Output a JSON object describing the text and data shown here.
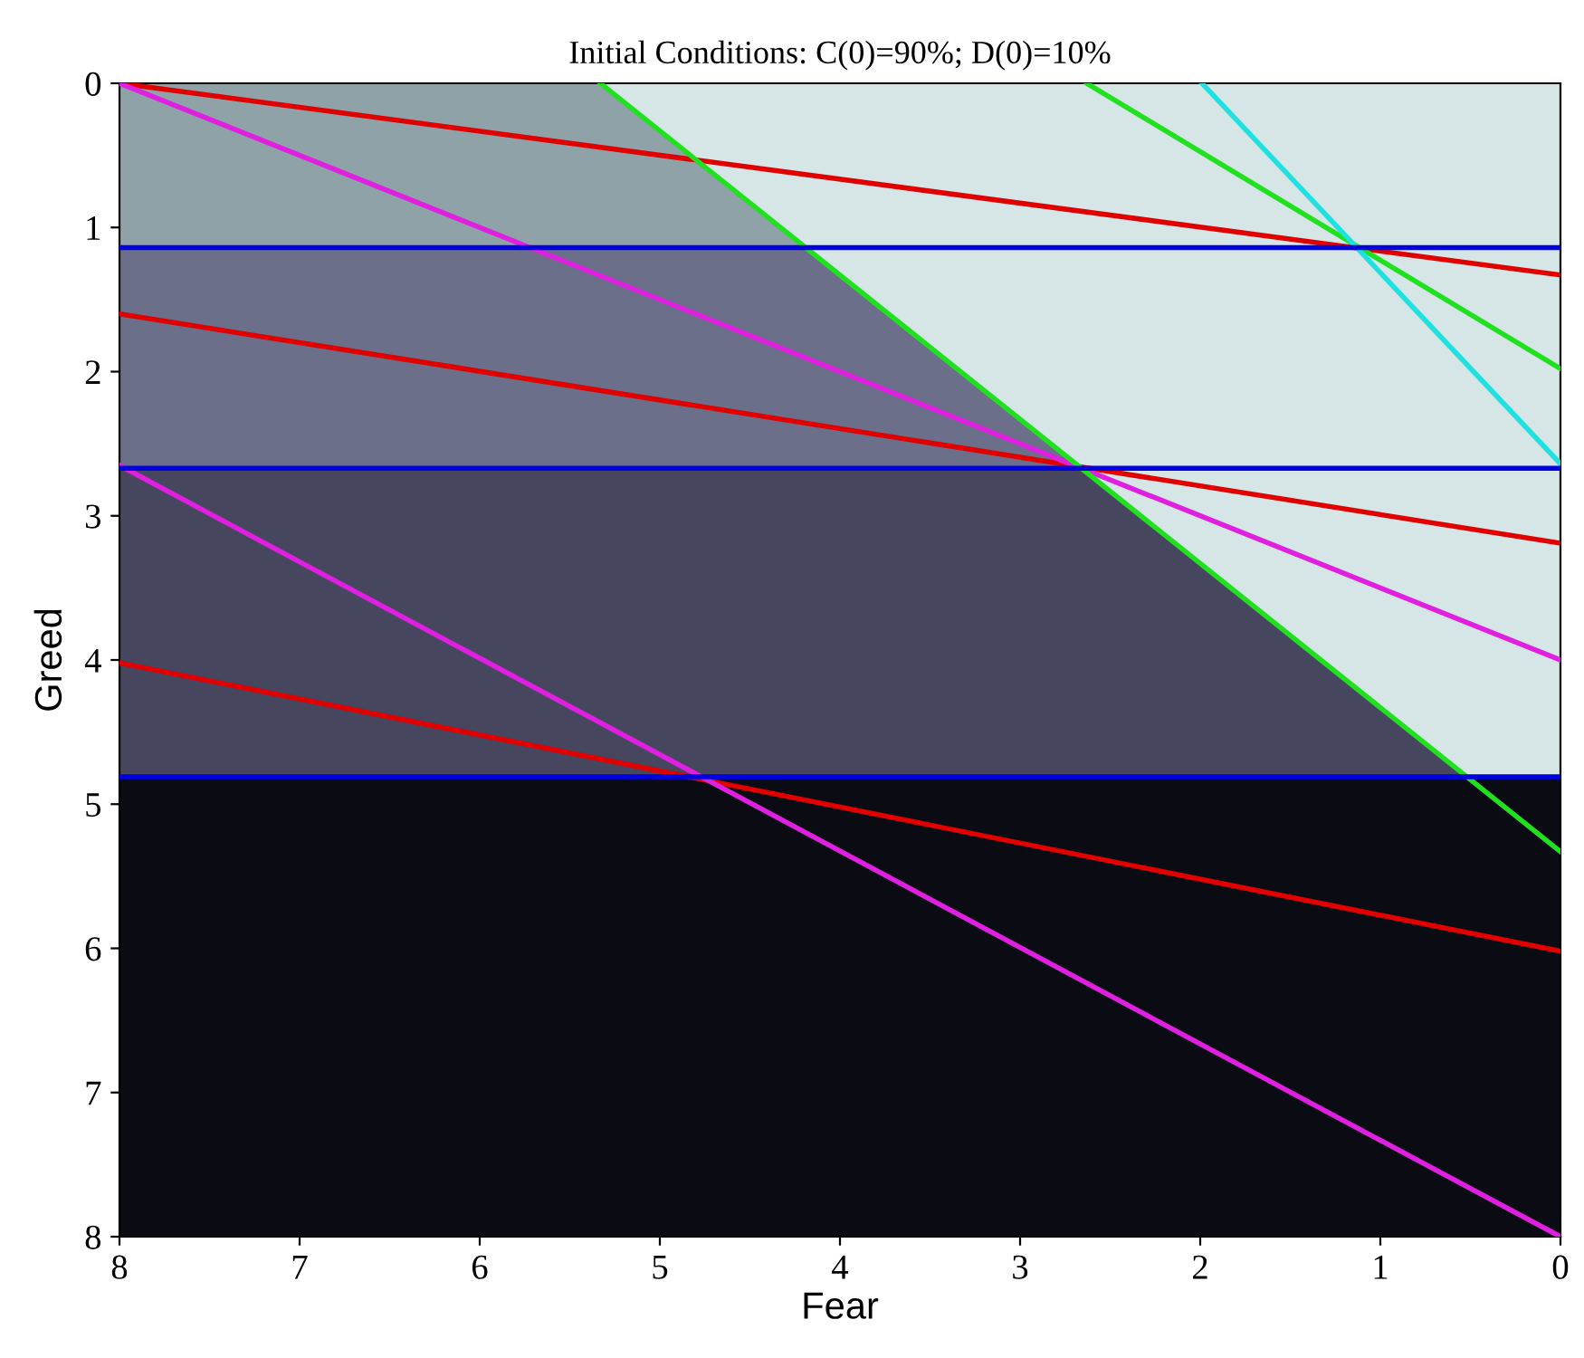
{
  "chart_data": {
    "type": "line",
    "title": "Initial Conditions: C(0)=90%; D(0)=10%",
    "xlabel": "Fear",
    "ylabel": "Greed",
    "xlim": [
      8,
      0
    ],
    "ylim": [
      8,
      0
    ],
    "xticks": [
      8,
      7,
      6,
      5,
      4,
      3,
      2,
      1,
      0
    ],
    "yticks": [
      0,
      1,
      2,
      3,
      4,
      5,
      6,
      7,
      8
    ],
    "grid": false,
    "legend": false,
    "marker": "none",
    "line_style": "solid",
    "bands": [
      {
        "axis": "y",
        "from": 0,
        "to": 1.14,
        "color": "#8fa2a8"
      },
      {
        "axis": "y",
        "from": 1.14,
        "to": 2.67,
        "color": "#6b6f89"
      },
      {
        "axis": "y",
        "from": 2.67,
        "to": 4.81,
        "color": "#46465f"
      },
      {
        "axis": "y",
        "from": 4.81,
        "to": 8,
        "color": "#0b0b13"
      }
    ],
    "series": [
      {
        "type": "area",
        "color": "#d6e6e6",
        "x": [
          5.33,
          0.52,
          0
        ],
        "values": [
          0,
          4.81,
          4.81
        ]
      },
      {
        "color": "#e00000",
        "x": [
          8,
          0
        ],
        "values": [
          0,
          1.33
        ]
      },
      {
        "color": "#e00000",
        "x": [
          8,
          0
        ],
        "values": [
          1.6,
          3.19
        ]
      },
      {
        "color": "#e00000",
        "x": [
          8,
          0
        ],
        "values": [
          4.02,
          6.02
        ]
      },
      {
        "color": "#e020e0",
        "x": [
          8,
          0
        ],
        "values": [
          0,
          4.0
        ]
      },
      {
        "color": "#e020e0",
        "x": [
          8,
          0
        ],
        "values": [
          2.65,
          8
        ]
      },
      {
        "color": "#20e020",
        "x": [
          5.33,
          0
        ],
        "values": [
          0,
          5.33
        ]
      },
      {
        "color": "#20e020",
        "x": [
          2.63,
          0
        ],
        "values": [
          0,
          1.98
        ]
      },
      {
        "color": "#20e0e0",
        "x": [
          1.99,
          0
        ],
        "values": [
          0,
          2.64
        ]
      },
      {
        "color": "#0000e0",
        "x": [
          8,
          0
        ],
        "values": [
          1.14,
          1.14
        ]
      },
      {
        "color": "#0000e0",
        "x": [
          8,
          0
        ],
        "values": [
          2.67,
          2.67
        ]
      },
      {
        "color": "#0000e0",
        "x": [
          8,
          0
        ],
        "values": [
          4.81,
          4.81
        ]
      }
    ]
  }
}
